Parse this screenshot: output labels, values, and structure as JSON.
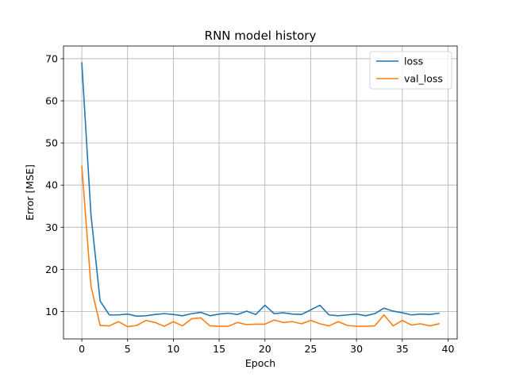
{
  "chart_data": {
    "type": "line",
    "title": "RNN model history",
    "xlabel": "Epoch",
    "ylabel": "Error [MSE]",
    "xlim": [
      -2,
      41
    ],
    "ylim": [
      3.5,
      73
    ],
    "xticks": [
      0,
      5,
      10,
      15,
      20,
      25,
      30,
      35,
      40
    ],
    "yticks": [
      10,
      20,
      30,
      40,
      50,
      60,
      70
    ],
    "grid": true,
    "legend_position": "top-right",
    "x": [
      0,
      1,
      2,
      3,
      4,
      5,
      6,
      7,
      8,
      9,
      10,
      11,
      12,
      13,
      14,
      15,
      16,
      17,
      18,
      19,
      20,
      21,
      22,
      23,
      24,
      25,
      26,
      27,
      28,
      29,
      30,
      31,
      32,
      33,
      34,
      35,
      36,
      37,
      38,
      39
    ],
    "series": [
      {
        "name": "loss",
        "color": "#1f77b4",
        "values": [
          69.0,
          33.0,
          12.5,
          9.2,
          9.2,
          9.4,
          8.9,
          9.0,
          9.3,
          9.5,
          9.3,
          9.0,
          9.5,
          9.8,
          9.0,
          9.4,
          9.6,
          9.3,
          10.1,
          9.3,
          11.5,
          9.5,
          9.7,
          9.4,
          9.3,
          10.4,
          11.5,
          9.2,
          9.0,
          9.2,
          9.4,
          9.0,
          9.5,
          10.8,
          10.1,
          9.7,
          9.2,
          9.4,
          9.3,
          9.6
        ]
      },
      {
        "name": "val_loss",
        "color": "#ff7f0e",
        "values": [
          44.5,
          16.0,
          6.7,
          6.6,
          7.6,
          6.4,
          6.7,
          7.9,
          7.4,
          6.5,
          7.6,
          6.6,
          8.3,
          8.5,
          6.6,
          6.5,
          6.5,
          7.4,
          6.9,
          7.0,
          7.0,
          8.0,
          7.4,
          7.6,
          7.1,
          7.9,
          7.1,
          6.6,
          7.6,
          6.7,
          6.5,
          6.5,
          6.6,
          9.2,
          6.6,
          7.9,
          6.8,
          7.1,
          6.6,
          7.1
        ]
      }
    ]
  }
}
